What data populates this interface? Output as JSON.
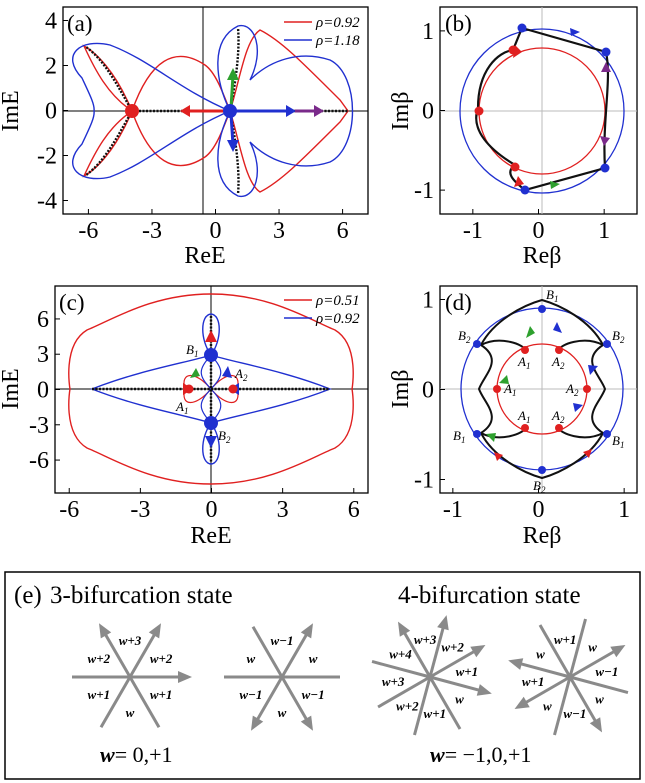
{
  "chart_data": [
    {
      "panel": "(a)",
      "type": "line",
      "xlabel": "ReE",
      "ylabel": "ImE",
      "xlim": [
        -7.2,
        7.2
      ],
      "ylim": [
        -4.6,
        4.6
      ],
      "xticks": [
        -6,
        -3,
        0,
        3,
        6
      ],
      "yticks": [
        -4,
        -2,
        0,
        2,
        4
      ],
      "xticklabels": [
        "-6",
        "-3",
        "0",
        "3",
        "6"
      ],
      "yticklabels": [
        "-4",
        "-2",
        "0",
        "2",
        "4"
      ],
      "legend": "top-right",
      "series": [
        {
          "name": "ρ=0.92",
          "color": "#e02020"
        },
        {
          "name": "ρ=1.18",
          "color": "#2030d0"
        }
      ],
      "markers": [
        {
          "x": -3.5,
          "y": 0,
          "color": "#e02020"
        },
        {
          "x": 1.3,
          "y": 0,
          "color": "#2030d0"
        }
      ]
    },
    {
      "panel": "(b)",
      "type": "line",
      "xlabel": "Reβ",
      "ylabel": "Imβ",
      "xlim": [
        -1.5,
        1.5
      ],
      "ylim": [
        -1.3,
        1.3
      ],
      "xticks": [
        -1,
        0,
        1
      ],
      "yticks": [
        -1,
        0,
        1
      ],
      "xticklabels": [
        "-1",
        "0",
        "1"
      ],
      "yticklabels": [
        "-1",
        "0",
        "1"
      ],
      "circles": [
        {
          "r": 0.92,
          "color": "#e02020"
        },
        {
          "r": 1.18,
          "color": "#2030d0"
        }
      ]
    },
    {
      "panel": "(c)",
      "type": "line",
      "xlabel": "ReE",
      "ylabel": "ImE",
      "xlim": [
        -6.6,
        6.6
      ],
      "ylim": [
        -8.8,
        8.8
      ],
      "xticks": [
        -6,
        -3,
        0,
        3,
        6
      ],
      "yticks": [
        -6,
        -3,
        0,
        3,
        6
      ],
      "xticklabels": [
        "-6",
        "-3",
        "0",
        "3",
        "6"
      ],
      "yticklabels": [
        "-6",
        "-3",
        "0",
        "3",
        "6"
      ],
      "legend": "top-right",
      "series": [
        {
          "name": "ρ=0.51",
          "color": "#e02020"
        },
        {
          "name": "ρ=0.92",
          "color": "#2030d0"
        }
      ],
      "points": [
        {
          "label": "B",
          "sub": "1",
          "x": 0,
          "y": 2.8
        },
        {
          "label": "B",
          "sub": "2",
          "x": 0,
          "y": -2.8
        },
        {
          "label": "A",
          "sub": "1",
          "x": -0.9,
          "y": 0
        },
        {
          "label": "A",
          "sub": "2",
          "x": 0.9,
          "y": 0
        }
      ]
    },
    {
      "panel": "(d)",
      "type": "line",
      "xlabel": "Reβ",
      "ylabel": "Imβ",
      "xlim": [
        -1.15,
        1.15
      ],
      "ylim": [
        -1.15,
        1.15
      ],
      "xticks": [
        -1,
        0,
        1
      ],
      "yticks": [
        -1,
        0,
        1
      ],
      "xticklabels": [
        "-1",
        "0",
        "1"
      ],
      "yticklabels": [
        "-1",
        "0",
        "1"
      ],
      "circles": [
        {
          "r": 0.51,
          "color": "#e02020"
        },
        {
          "r": 0.92,
          "color": "#2030d0"
        }
      ]
    }
  ],
  "panel_e": {
    "label": "(e)",
    "title_left": "3-bifurcation state",
    "title_right": "4-bifurcation state",
    "stars": [
      {
        "labels": [
          "w+2",
          "w+1",
          "w",
          "w+1",
          "w+2",
          "w+3"
        ]
      },
      {
        "labels": [
          "w",
          "w−1",
          "w",
          "w−1",
          "w",
          "w−1"
        ]
      },
      {
        "labels": [
          "w+2",
          "w+1",
          "w",
          "w+1",
          "w+2",
          "w+3",
          "w+4",
          "w+3"
        ]
      },
      {
        "labels": [
          "w",
          "w−1",
          "w",
          "w−1",
          "w",
          "w+1",
          "w",
          "w+1"
        ]
      }
    ],
    "formula_left": "= 0,+1",
    "formula_right": "= −1,0,+1",
    "formula_var": "w"
  }
}
